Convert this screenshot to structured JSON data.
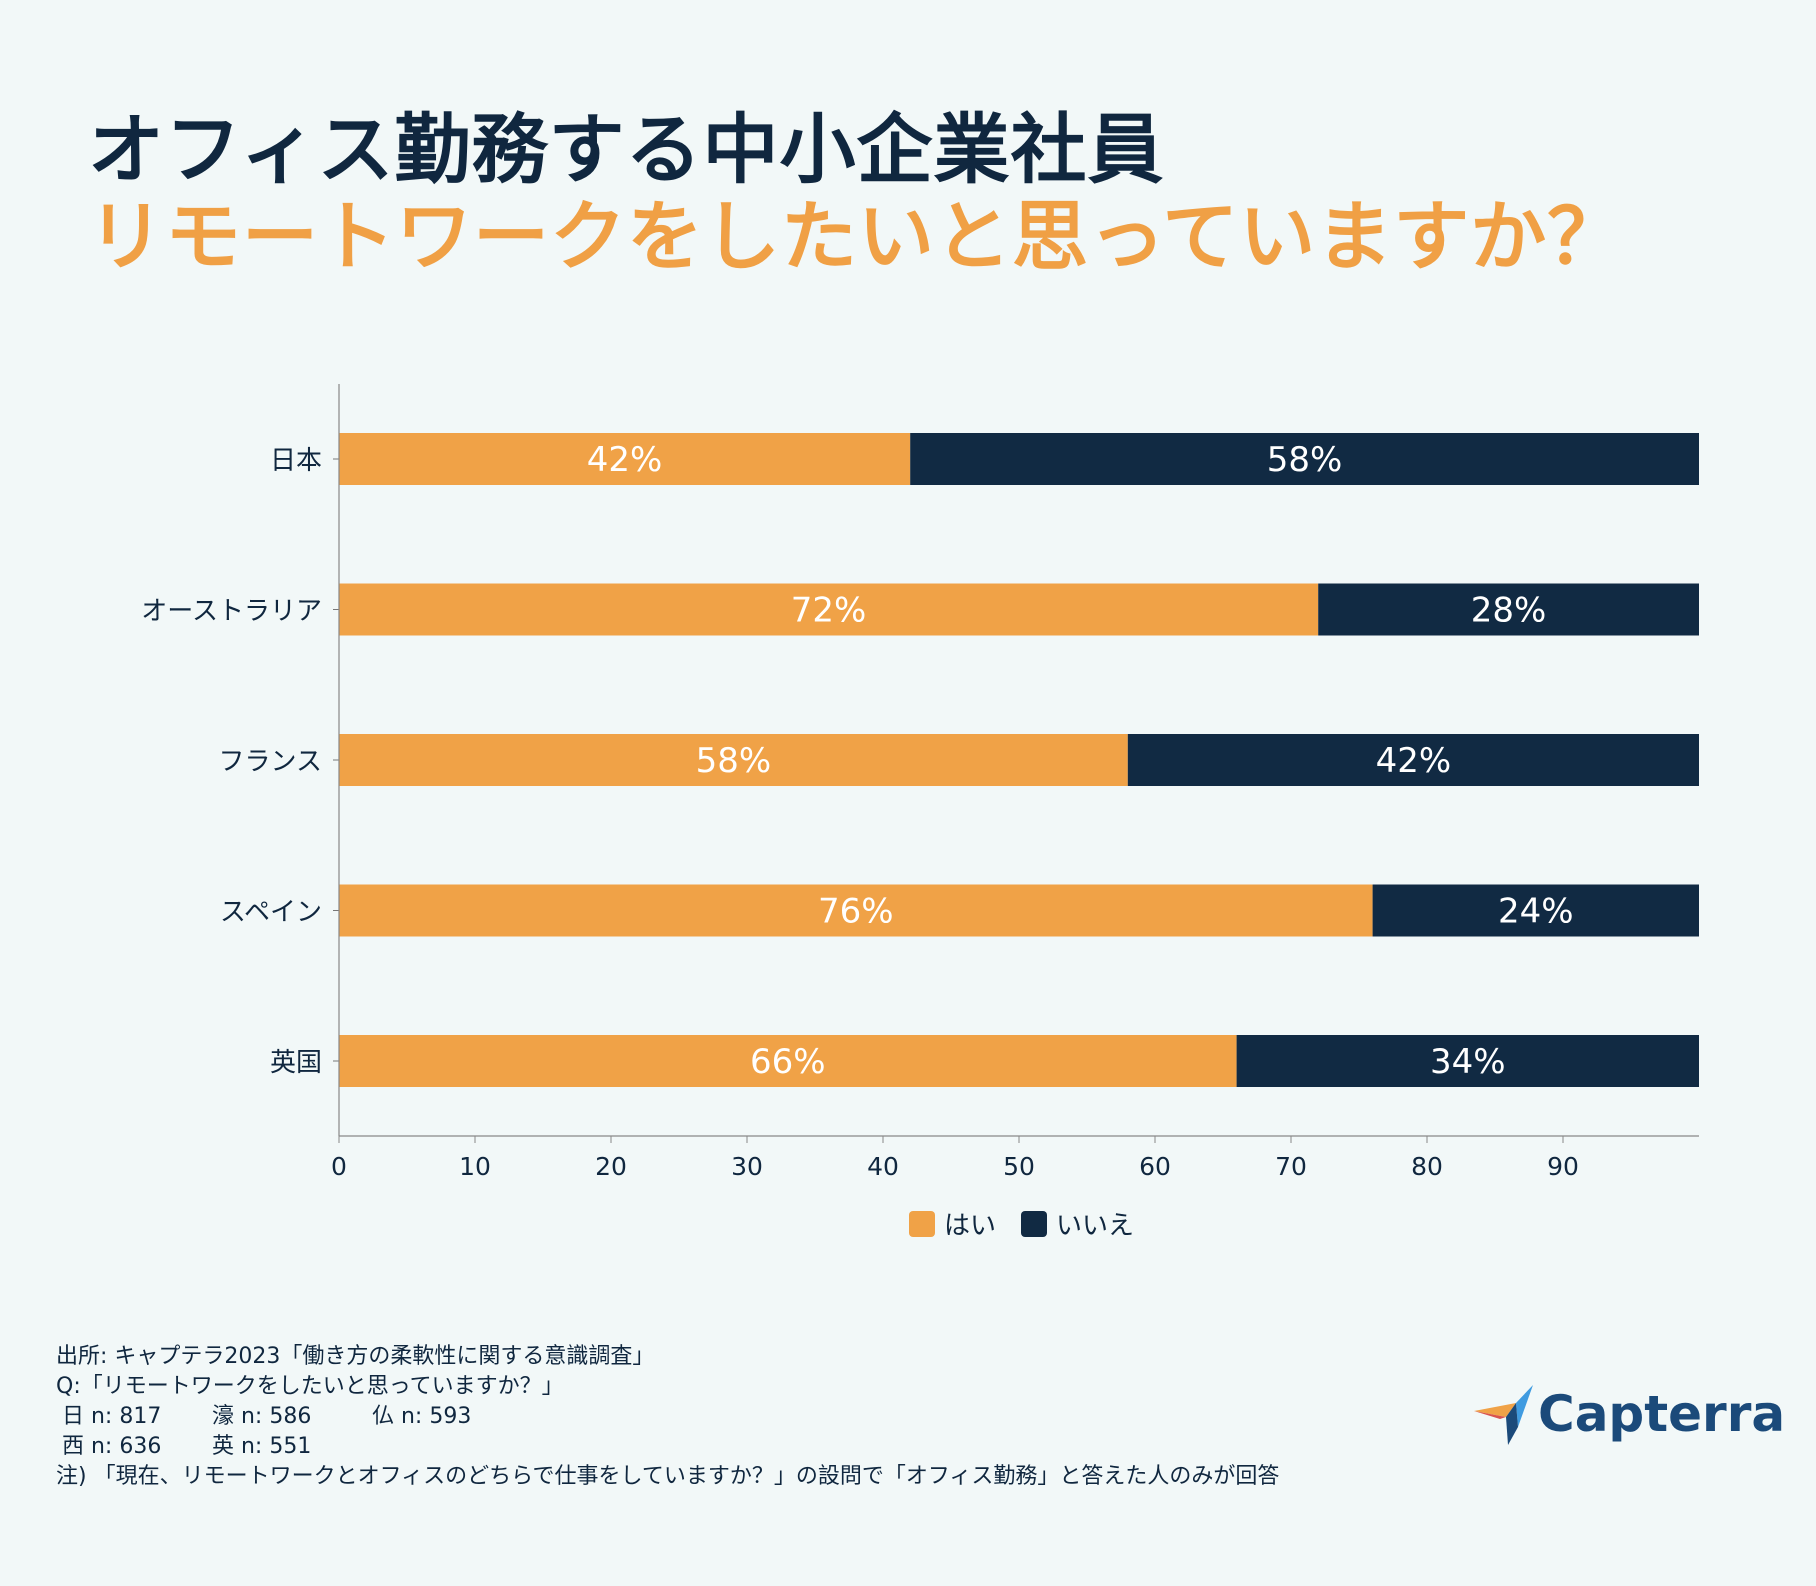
{
  "header": {
    "title_line1": "オフィス勤務する中小企業社員",
    "title_line2": "リモートワークをしたいと思っていますか？"
  },
  "colors": {
    "yes": "#f0a247",
    "no": "#112a43",
    "background": "#f2f8f8"
  },
  "chart_data": {
    "type": "bar",
    "orientation": "horizontal",
    "stacked": true,
    "categories": [
      "日本",
      "オーストラリア",
      "フランス",
      "スペイン",
      "英国"
    ],
    "series": [
      {
        "name": "はい",
        "values": [
          42,
          72,
          58,
          76,
          66
        ],
        "labels": [
          "42%",
          "72%",
          "58%",
          "76%",
          "66%"
        ]
      },
      {
        "name": "いいえ",
        "values": [
          58,
          28,
          42,
          24,
          34
        ],
        "labels": [
          "58%",
          "28%",
          "42%",
          "24%",
          "34%"
        ]
      }
    ],
    "xlim": [
      0,
      100
    ],
    "xticks": [
      0,
      10,
      20,
      30,
      40,
      50,
      60,
      70,
      80,
      90
    ],
    "legend": "bottom-center"
  },
  "footer": {
    "source": "出所: キャプテラ2023「働き方の柔軟性に関する意識調査」",
    "question": "Q:「リモートワークをしたいと思っていますか？」",
    "n_jp": "日 n: 817",
    "n_au": "濠 n: 586",
    "n_fr": "仏 n: 593",
    "n_es": "西 n: 636",
    "n_uk": "英 n: 551",
    "note": "注) 「現在、リモートワークとオフィスのどちらで仕事をしていますか？」の設問で「オフィス勤務」と答えた人のみが回答"
  },
  "logo": {
    "text": "Capterra",
    "icon": "capterra-arrow-icon"
  }
}
